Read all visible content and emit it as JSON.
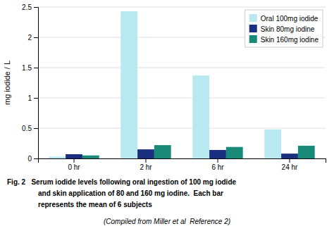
{
  "chart_data": {
    "type": "bar",
    "categories": [
      "0 hr",
      "2 hr",
      "6 hr",
      "24 hr"
    ],
    "series": [
      {
        "name": "Oral 100mg iodide",
        "color": "#b8e8f0",
        "values": [
          0.03,
          2.43,
          1.37,
          0.48
        ]
      },
      {
        "name": "Skin 80mg iodine",
        "color": "#1a2f80",
        "values": [
          0.07,
          0.15,
          0.14,
          0.08
        ]
      },
      {
        "name": "Skin 160mg iodine",
        "color": "#1a8a78",
        "values": [
          0.05,
          0.22,
          0.19,
          0.21
        ]
      }
    ],
    "y_label": "mg iodide / L",
    "ylim": [
      0,
      2.5
    ],
    "yticks": [
      0,
      0.5,
      1,
      1.5,
      2,
      2.5
    ],
    "grid": true,
    "legend": "upper right",
    "annotations": [
      "Fig. 2   Serum iodide levels following oral ingestion of 100 mg iodide",
      "and skin application of 80 and 160 mg iodine.  Each bar",
      "represents the mean of 6 subjects"
    ],
    "subtitle": "(Compiled from Miller et al  Reference 2)"
  }
}
